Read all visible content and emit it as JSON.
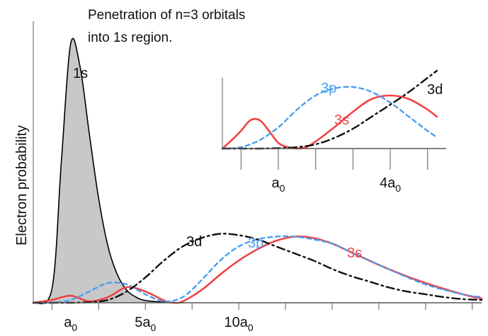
{
  "chart_data": [
    {
      "type": "line",
      "title": "Penetration of n=3 orbitals",
      "subtitle": "into 1s region.",
      "xlabel": "",
      "ylabel": "Electron probability",
      "xlim": [
        -1,
        23
      ],
      "ylim": [
        0,
        1.0
      ],
      "x_ticks": [
        0,
        2.5,
        5,
        7.5,
        10,
        12.5,
        15,
        17.5,
        20,
        22.5
      ],
      "x_tick_labels": [
        {
          "x": 1,
          "base": "a",
          "sub": "0"
        },
        {
          "x": 5,
          "base": "5a",
          "sub": "0"
        },
        {
          "x": 10,
          "base": "10a",
          "sub": "0"
        }
      ],
      "series": [
        {
          "name": "1s",
          "color": "#000000",
          "fill": "#c8c8c8",
          "style": "solid",
          "x": [
            -1,
            0,
            0.5,
            1,
            1.5,
            2,
            2.5,
            3,
            3.5,
            4,
            4.5,
            5,
            6,
            7
          ],
          "y": [
            0,
            0.05,
            0.5,
            0.92,
            0.84,
            0.6,
            0.37,
            0.2,
            0.1,
            0.045,
            0.02,
            0.008,
            0.002,
            0
          ]
        },
        {
          "name": "3s",
          "color": "#ee4444",
          "style": "solid",
          "x": [
            -1,
            0,
            1,
            2,
            3,
            4,
            5,
            6,
            6.5,
            7,
            8,
            9,
            10,
            11,
            12,
            13,
            14,
            15,
            16,
            18,
            20,
            22,
            23
          ],
          "y": [
            0,
            0.01,
            0.025,
            0.005,
            0.02,
            0.055,
            0.04,
            0.008,
            0,
            0.005,
            0.045,
            0.1,
            0.15,
            0.19,
            0.22,
            0.235,
            0.23,
            0.21,
            0.18,
            0.12,
            0.07,
            0.03,
            0.015
          ]
        },
        {
          "name": "3p",
          "color": "#4a9ef0",
          "style": "dashed",
          "x": [
            -1,
            0,
            1,
            2,
            3,
            4,
            5,
            6,
            7,
            8,
            9,
            10,
            11,
            12,
            13,
            14,
            15,
            16,
            18,
            20,
            22,
            23
          ],
          "y": [
            0,
            0,
            0.01,
            0.04,
            0.07,
            0.065,
            0.03,
            0.005,
            0.02,
            0.08,
            0.15,
            0.2,
            0.225,
            0.235,
            0.235,
            0.225,
            0.21,
            0.18,
            0.12,
            0.065,
            0.03,
            0.02
          ]
        },
        {
          "name": "3d",
          "color": "#111111",
          "style": "dashdot",
          "x": [
            -1,
            0,
            1,
            2,
            3,
            4,
            5,
            6,
            7,
            8,
            9,
            10,
            11,
            12,
            13,
            14,
            15,
            16,
            17,
            18,
            19,
            20,
            21,
            22,
            23
          ],
          "y": [
            0,
            0,
            0,
            0.002,
            0.01,
            0.04,
            0.09,
            0.15,
            0.2,
            0.23,
            0.245,
            0.24,
            0.225,
            0.2,
            0.175,
            0.15,
            0.12,
            0.095,
            0.075,
            0.055,
            0.04,
            0.03,
            0.02,
            0.013,
            0.01
          ]
        }
      ]
    },
    {
      "type": "line",
      "title": "",
      "xlabel": "",
      "ylabel": "",
      "xlim": [
        -0.5,
        5.5
      ],
      "ylim": [
        0,
        1.0
      ],
      "x_ticks": [
        0,
        1,
        2,
        3,
        4,
        5
      ],
      "x_tick_labels": [
        {
          "x": 1,
          "base": "a",
          "sub": "0"
        },
        {
          "x": 4,
          "base": "4a",
          "sub": "0"
        }
      ],
      "series": [
        {
          "name": "3s",
          "color": "#ee4444",
          "style": "solid",
          "x": [
            -0.5,
            -0.25,
            0,
            0.25,
            0.5,
            0.75,
            1,
            1.25,
            1.5,
            1.75,
            2,
            2.5,
            3,
            3.5,
            4,
            4.5,
            5,
            5.25
          ],
          "y": [
            0,
            0.12,
            0.25,
            0.4,
            0.4,
            0.25,
            0.08,
            0.02,
            0,
            0.02,
            0.1,
            0.3,
            0.52,
            0.7,
            0.75,
            0.7,
            0.55,
            0.45
          ]
        },
        {
          "name": "3p",
          "color": "#4a9ef0",
          "style": "dashed",
          "x": [
            -0.5,
            0,
            0.5,
            1,
            1.5,
            2,
            2.5,
            3,
            3.5,
            4,
            4.5,
            5,
            5.25
          ],
          "y": [
            0,
            0.02,
            0.12,
            0.3,
            0.55,
            0.75,
            0.85,
            0.87,
            0.8,
            0.65,
            0.45,
            0.25,
            0.16
          ]
        },
        {
          "name": "3d",
          "color": "#111111",
          "style": "dashdot",
          "x": [
            -0.5,
            0,
            0.5,
            1,
            1.5,
            2,
            2.5,
            3,
            3.5,
            4,
            4.5,
            5,
            5.25
          ],
          "y": [
            0,
            0,
            0,
            0.005,
            0.02,
            0.06,
            0.15,
            0.28,
            0.45,
            0.62,
            0.8,
            1.0,
            1.1
          ]
        }
      ]
    }
  ]
}
